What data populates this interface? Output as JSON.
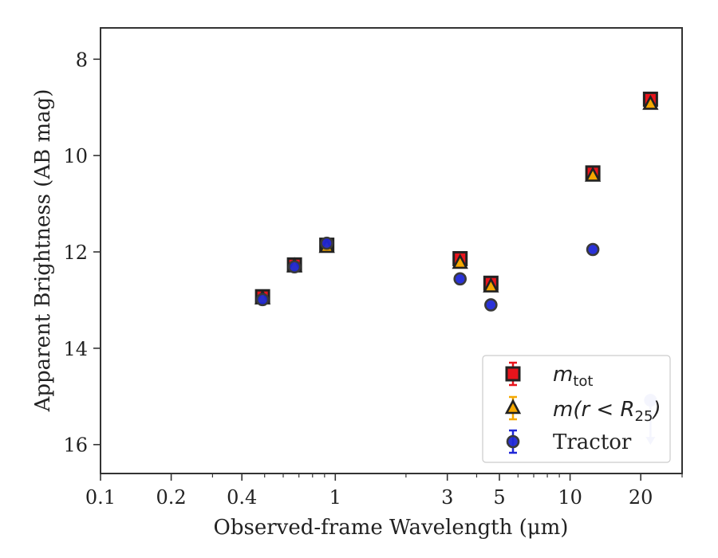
{
  "chart_data": {
    "type": "scatter",
    "xlabel": "Observed-frame Wavelength (μm)",
    "ylabel": "Apparent Brightness (AB mag)",
    "x_scale": "log",
    "xlim": [
      0.1,
      30
    ],
    "ylim": [
      16.6,
      7.35
    ],
    "y_inverted": true,
    "x_ticks": [
      {
        "value": 0.1,
        "label": "0.1"
      },
      {
        "value": 0.2,
        "label": "0.2"
      },
      {
        "value": 0.4,
        "label": "0.4"
      },
      {
        "value": 1,
        "label": "1"
      },
      {
        "value": 3,
        "label": "3"
      },
      {
        "value": 5,
        "label": "5"
      },
      {
        "value": 10,
        "label": "10"
      },
      {
        "value": 20,
        "label": "20"
      }
    ],
    "y_ticks": [
      {
        "value": 8,
        "label": "8"
      },
      {
        "value": 10,
        "label": "10"
      },
      {
        "value": 12,
        "label": "12"
      },
      {
        "value": 14,
        "label": "14"
      },
      {
        "value": 16,
        "label": "16"
      }
    ],
    "grid": false,
    "legend_position": "bottom-right",
    "series": [
      {
        "name": "m_tot",
        "legend_main": "m",
        "legend_sub": "tot",
        "marker": "square",
        "color": "#e8141c",
        "edge": "#222222",
        "x": [
          0.49,
          0.67,
          0.92,
          3.4,
          4.6,
          12.5,
          22
        ],
        "y": [
          12.93,
          12.27,
          11.86,
          12.14,
          12.65,
          10.36,
          8.83
        ]
      },
      {
        "name": "m(r < R_25)",
        "legend_main": "m(r < R",
        "legend_sub": "25",
        "legend_end": ")",
        "marker": "triangle",
        "color": "#f5a800",
        "edge": "#222222",
        "x": [
          0.49,
          0.67,
          0.92,
          3.4,
          4.6,
          12.5,
          22
        ],
        "y": [
          12.97,
          12.3,
          11.9,
          12.23,
          12.72,
          10.42,
          8.93
        ]
      },
      {
        "name": "Tractor",
        "marker": "circle",
        "color": "#1f27d6",
        "edge": "#3a3a3a",
        "x": [
          0.49,
          0.67,
          0.92,
          3.4,
          4.6,
          12.5
        ],
        "y": [
          12.99,
          12.31,
          11.82,
          12.56,
          13.1,
          11.95
        ]
      }
    ],
    "upper_limits": [
      {
        "series": "Tractor",
        "x": 22,
        "y": 15.08,
        "color": "#b3b8f2"
      }
    ]
  }
}
